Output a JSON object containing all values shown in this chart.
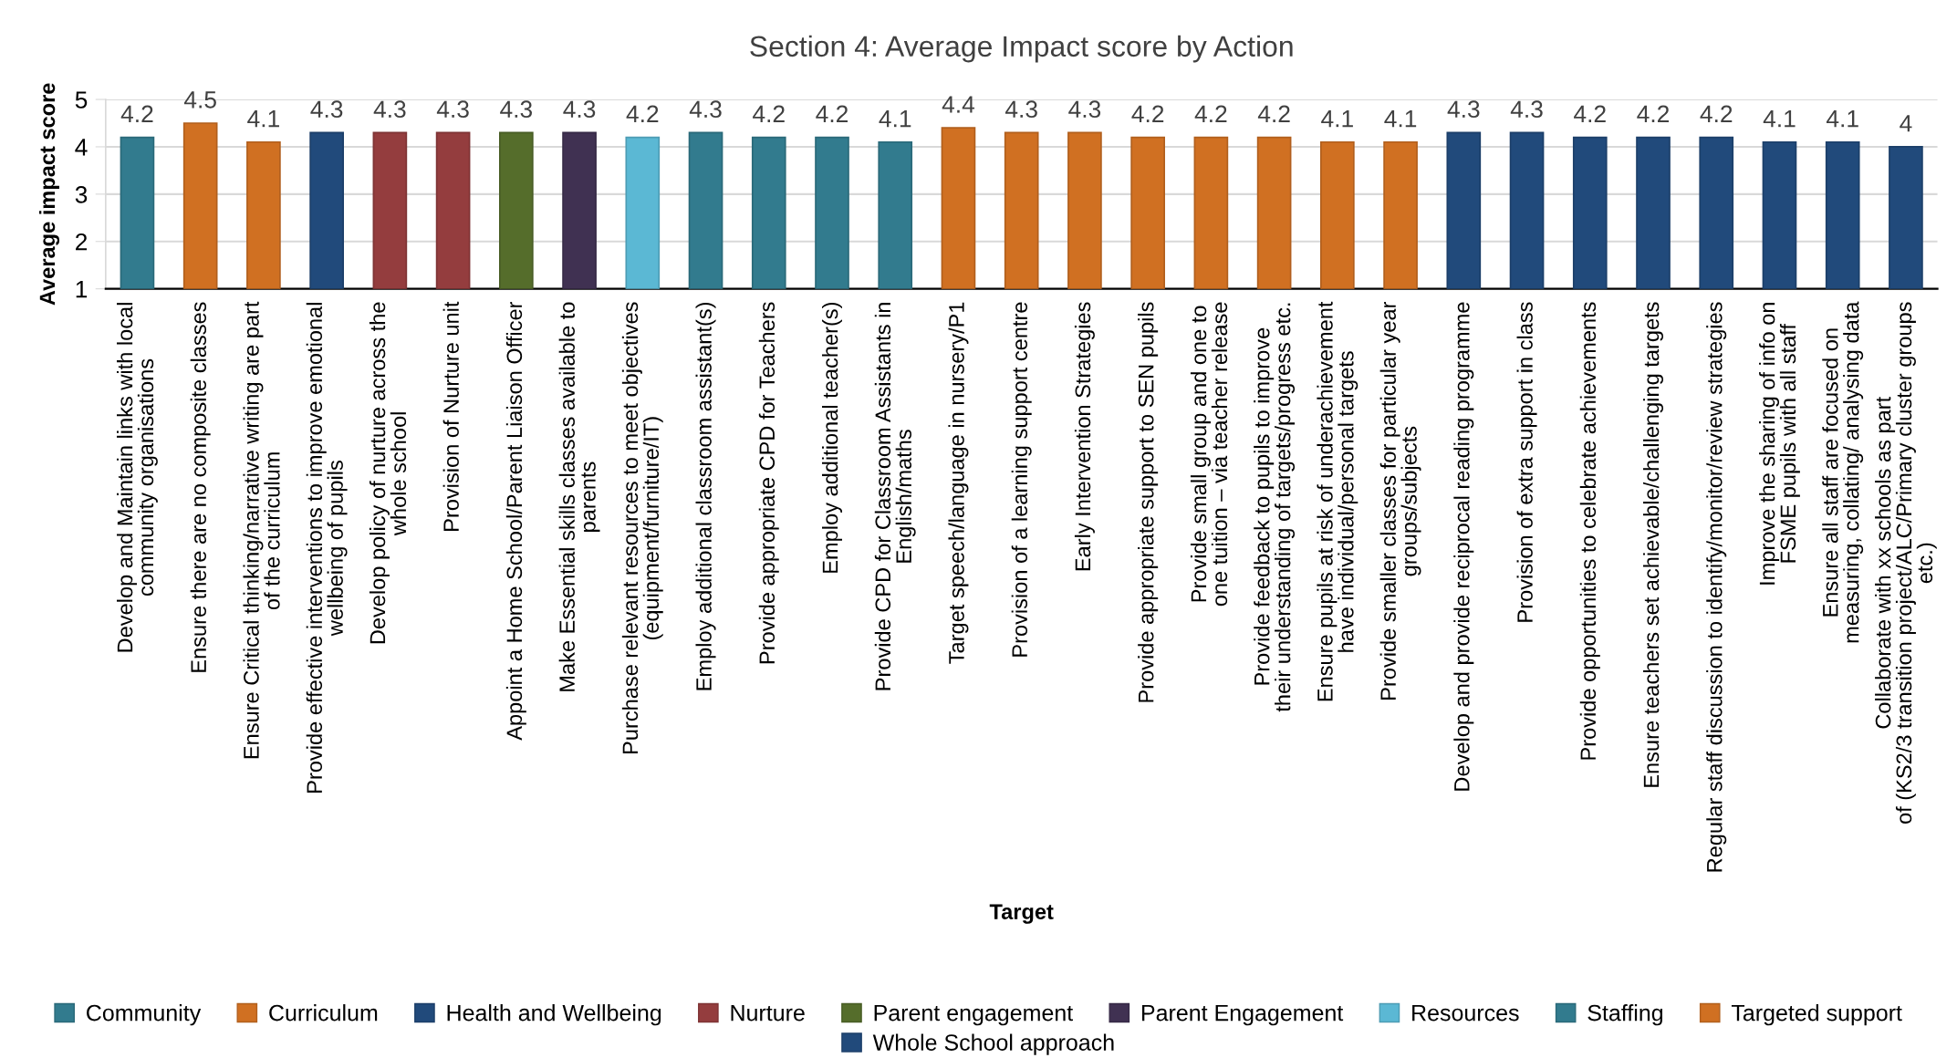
{
  "chart_data": {
    "type": "bar",
    "title": "Section 4: Average Impact score by Action",
    "xlabel": "Target",
    "ylabel": "Average impact score",
    "categories": [
      "Develop and Maintain links with local\ncommunity organisations",
      "Ensure there are no composite classes",
      "Ensure Critical thinking/narrative writing are part\nof the curriculum",
      "Provide effective interventions to improve emotional\nwellbeing of pupils",
      "Develop policy of nurture across the\nwhole school",
      "Provision of Nurture unit",
      "Appoint a Home School/Parent Liaison Officer",
      "Make Essential skills classes available to\nparents",
      "Purchase relevant resources to meet objectives\n(equipment/furniture/IT)",
      "Employ additional classroom assistant(s)",
      "Provide appropriate CPD for Teachers",
      "Employ additional teacher(s)",
      "Provide CPD for Classroom Assistants in\nEnglish/maths",
      "Target speech/language in nursery/P1",
      "Provision of a learning support centre",
      "Early Intervention Strategies",
      "Provide appropriate support to SEN pupils",
      "Provide small group and one to\none tuition – via teacher release",
      "Provide feedback to pupils to improve\ntheir understanding of targets/progress etc.",
      "Ensure pupils at risk of underachievement\nhave individual/personal targets",
      "Provide smaller classes for particular year\ngroups/subjects",
      "Develop and provide reciprocal reading programme",
      "Provision of extra support in class",
      "Provide opportunities to celebrate achievements",
      "Ensure teachers set achievable/challenging targets",
      "Regular staff discussion to identify/monitor/review strategies",
      "Improve the sharing of info on\nFSME pupils with all staff",
      "Ensure all staff are focused on\nmeasuring, collating/ analysing data",
      "Collaborate with xx schools as part\nof (KS2/3 transition project/ALC/Primary cluster groups\netc.)"
    ],
    "series": [
      {
        "name": "Community",
        "color": "#327b8e",
        "values": [
          4.2,
          null,
          null,
          null,
          null,
          null,
          null,
          null,
          null,
          null,
          null,
          null,
          null,
          null,
          null,
          null,
          null,
          null,
          null,
          null,
          null,
          null,
          null,
          null,
          null,
          null,
          null,
          null,
          null
        ]
      },
      {
        "name": "Curriculum",
        "color": "#d07022",
        "values": [
          null,
          4.5,
          4.1,
          null,
          null,
          null,
          null,
          null,
          null,
          null,
          null,
          null,
          null,
          null,
          null,
          null,
          null,
          null,
          null,
          null,
          null,
          null,
          null,
          null,
          null,
          null,
          null,
          null,
          null
        ]
      },
      {
        "name": "Health and Wellbeing",
        "color": "#214a7b",
        "values": [
          null,
          null,
          null,
          4.3,
          null,
          null,
          null,
          null,
          null,
          null,
          null,
          null,
          null,
          null,
          null,
          null,
          null,
          null,
          null,
          null,
          null,
          null,
          null,
          null,
          null,
          null,
          null,
          null,
          null
        ]
      },
      {
        "name": "Nurture",
        "color": "#943d3e",
        "values": [
          null,
          null,
          null,
          null,
          4.3,
          4.3,
          null,
          null,
          null,
          null,
          null,
          null,
          null,
          null,
          null,
          null,
          null,
          null,
          null,
          null,
          null,
          null,
          null,
          null,
          null,
          null,
          null,
          null,
          null
        ]
      },
      {
        "name": "Parent engagement",
        "color": "#556d2b",
        "values": [
          null,
          null,
          null,
          null,
          null,
          null,
          4.3,
          null,
          null,
          null,
          null,
          null,
          null,
          null,
          null,
          null,
          null,
          null,
          null,
          null,
          null,
          null,
          null,
          null,
          null,
          null,
          null,
          null,
          null
        ]
      },
      {
        "name": "Parent Engagement",
        "color": "#403152",
        "values": [
          null,
          null,
          null,
          null,
          null,
          null,
          null,
          4.3,
          null,
          null,
          null,
          null,
          null,
          null,
          null,
          null,
          null,
          null,
          null,
          null,
          null,
          null,
          null,
          null,
          null,
          null,
          null,
          null,
          null
        ]
      },
      {
        "name": "Resources",
        "color": "#5bb8d4",
        "values": [
          null,
          null,
          null,
          null,
          null,
          null,
          null,
          null,
          4.2,
          null,
          null,
          null,
          null,
          null,
          null,
          null,
          null,
          null,
          null,
          null,
          null,
          null,
          null,
          null,
          null,
          null,
          null,
          null,
          null
        ]
      },
      {
        "name": "Staffing",
        "color": "#327b8e",
        "values": [
          null,
          null,
          null,
          null,
          null,
          null,
          null,
          null,
          null,
          4.3,
          4.2,
          4.2,
          4.1,
          null,
          null,
          null,
          null,
          null,
          null,
          null,
          null,
          null,
          null,
          null,
          null,
          null,
          null,
          null,
          null
        ]
      },
      {
        "name": "Targeted support",
        "color": "#d07022",
        "values": [
          null,
          null,
          null,
          null,
          null,
          null,
          null,
          null,
          null,
          null,
          null,
          null,
          null,
          4.4,
          4.3,
          4.3,
          4.2,
          4.2,
          4.2,
          4.1,
          4.1,
          null,
          null,
          null,
          null,
          null,
          null,
          null,
          null
        ]
      },
      {
        "name": "Whole School approach",
        "color": "#214a7b",
        "values": [
          null,
          null,
          null,
          null,
          null,
          null,
          null,
          null,
          null,
          null,
          null,
          null,
          null,
          null,
          null,
          null,
          null,
          null,
          null,
          null,
          null,
          4.3,
          4.3,
          4.2,
          4.2,
          4.2,
          4.1,
          4.1,
          4
        ]
      }
    ],
    "stacked": true,
    "ylim": [
      1,
      5
    ],
    "yticks": [
      1,
      2,
      3,
      4,
      5
    ],
    "grid": "y",
    "legend": "bottom",
    "data_labels": true
  }
}
